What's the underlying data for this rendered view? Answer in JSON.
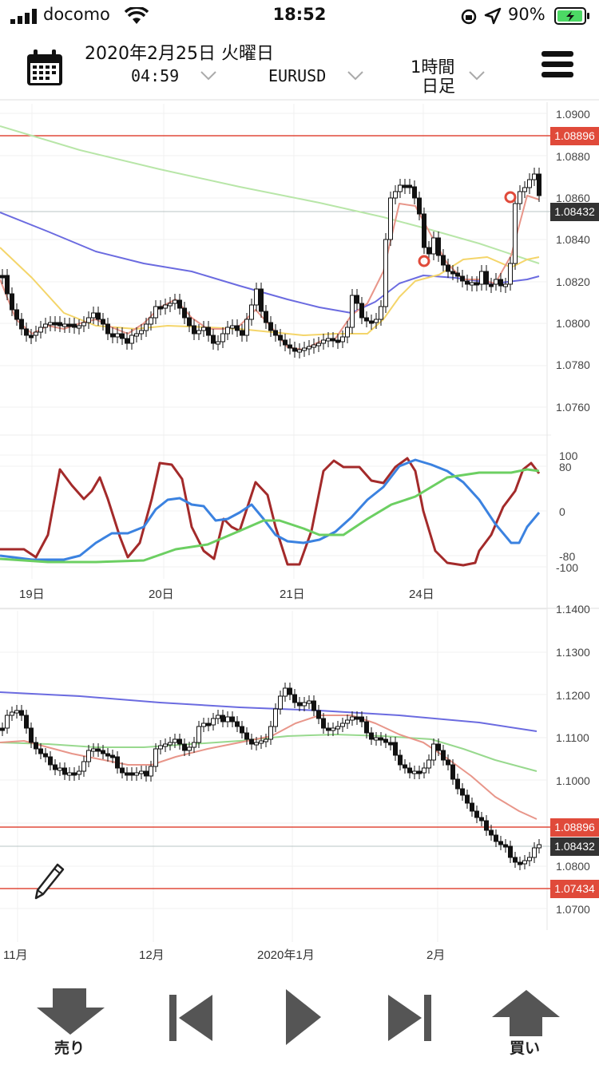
{
  "status_bar": {
    "carrier": "docomo",
    "time": "18:52",
    "battery": "90%"
  },
  "header": {
    "date": "2020年2月25日 火曜日",
    "time": "04:59",
    "symbol": "EURUSD",
    "timeframe_line1": "1時間",
    "timeframe_line2": "日足"
  },
  "colors": {
    "bear": "#111111",
    "bull": "#ffffff",
    "price_line": "#e04a3a",
    "ma_short": "#e8968a",
    "ma_mid": "#f4d56a",
    "ma_long": "#6b6be0",
    "ma_200": "#b8e6a8",
    "ma_green": "#98d98e",
    "stoch_k": "#a32a2a",
    "stoch_d": "#3b82e0",
    "stoch_slow": "#6ccf62"
  },
  "chart_hourly": {
    "y_labels": [
      "1.0900",
      "1.0880",
      "1.0860",
      "1.0840",
      "1.0820",
      "1.0800",
      "1.0780",
      "1.0760"
    ],
    "tag_high": "1.08896",
    "tag_last": "1.08432"
  },
  "oscillator": {
    "y_labels": [
      "100",
      "80",
      "0",
      "-80",
      "-100"
    ],
    "x_labels": [
      "19日",
      "20日",
      "21日",
      "24日"
    ]
  },
  "chart_daily": {
    "y_labels": [
      "1.1400",
      "1.1300",
      "1.1200",
      "1.1100",
      "1.1000",
      "1.0900",
      "1.0800",
      "1.0700"
    ],
    "tag_high": "1.08896",
    "tag_last": "1.08432",
    "tag_low": "1.07434",
    "x_labels": [
      "11月",
      "12月",
      "2020年1月",
      "2月"
    ]
  },
  "toolbar": {
    "sell_label": "売り",
    "buy_label": "買い"
  },
  "icons": {
    "calendar": "calendar-icon",
    "menu": "hamburger-menu-icon",
    "pencil": "pencil-icon",
    "sell": "sell-arrow-down-icon",
    "buy": "buy-arrow-up-icon",
    "first": "skip-back-icon",
    "play": "play-icon",
    "last": "skip-forward-icon"
  }
}
